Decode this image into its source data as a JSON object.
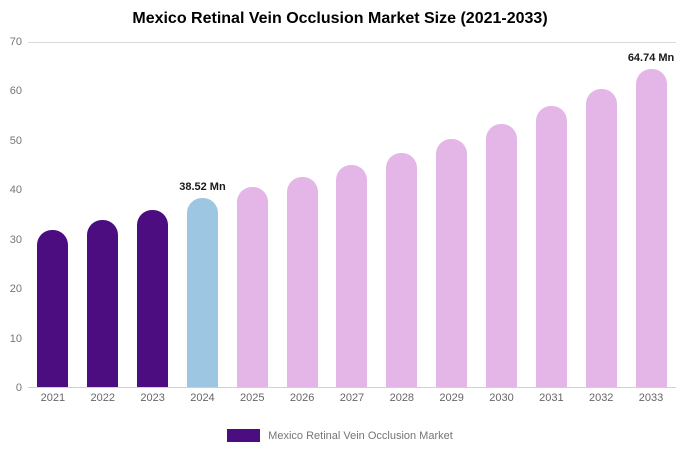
{
  "title": "Mexico Retinal Vein Occlusion Market Size (2021-2033)",
  "legend": {
    "label": "Mexico Retinal Vein Occlusion Market",
    "swatch_color": "#4B0D7F"
  },
  "colors": {
    "historical_purple": "#4B0D7F",
    "current_blue": "#9DC6E2",
    "forecast_pink": "#E4B6E7",
    "axis_text": "#757575"
  },
  "chart_data": {
    "type": "bar",
    "title": "Mexico Retinal Vein Occlusion Market Size (2021-2033)",
    "categories": [
      "2021",
      "2022",
      "2023",
      "2024",
      "2025",
      "2026",
      "2027",
      "2028",
      "2029",
      "2030",
      "2031",
      "2032",
      "2033"
    ],
    "values": [
      32.0,
      34.0,
      36.1,
      38.52,
      40.6,
      42.8,
      45.2,
      47.7,
      50.5,
      53.6,
      57.1,
      60.7,
      64.74
    ],
    "unit": "Mn",
    "xlabel": "",
    "ylabel": "",
    "ylim": [
      0,
      70
    ],
    "yticks": [
      0,
      10,
      20,
      30,
      40,
      50,
      60,
      70
    ],
    "grid": false,
    "legend_position": "bottom",
    "bar_colors": [
      "#4B0D7F",
      "#4B0D7F",
      "#4B0D7F",
      "#9DC6E2",
      "#E4B6E7",
      "#E4B6E7",
      "#E4B6E7",
      "#E4B6E7",
      "#E4B6E7",
      "#E4B6E7",
      "#E4B6E7",
      "#E4B6E7",
      "#E4B6E7"
    ],
    "annotations": [
      {
        "category": "2024",
        "text": "38.52 Mn"
      },
      {
        "category": "2033",
        "text": "64.74 Mn"
      }
    ]
  }
}
